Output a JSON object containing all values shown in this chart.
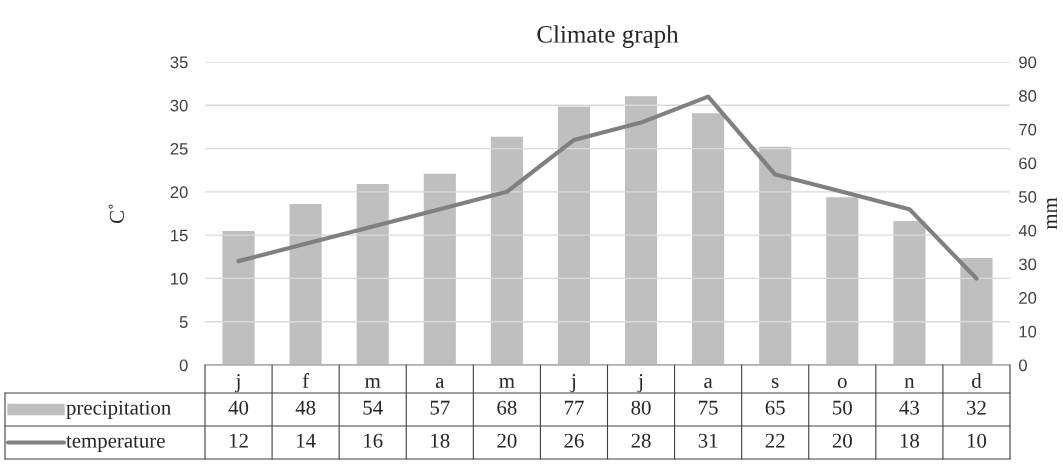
{
  "chart_data": {
    "type": "bar",
    "title": "Climate graph",
    "ylabel": "C˚",
    "y2label": "mm",
    "categories": [
      "j",
      "f",
      "m",
      "a",
      "m",
      "j",
      "j",
      "a",
      "s",
      "o",
      "n",
      "d"
    ],
    "series": [
      {
        "name": "precipitation",
        "axis": "y2",
        "color": "#bfbfbf",
        "values": [
          40,
          48,
          54,
          57,
          68,
          77,
          80,
          75,
          65,
          50,
          43,
          32
        ]
      },
      {
        "name": "temperature",
        "type": "line",
        "color": "#808080",
        "values": [
          12,
          14,
          16,
          18,
          20,
          26,
          28,
          31,
          22,
          20,
          18,
          10
        ]
      }
    ],
    "ylim": [
      0,
      35
    ],
    "yticks": [
      0,
      5,
      10,
      15,
      20,
      25,
      30,
      35
    ],
    "y2lim": [
      0,
      90
    ],
    "y2ticks": [
      0,
      10,
      20,
      30,
      40,
      50,
      60,
      70,
      80,
      90
    ],
    "grid": "y",
    "legend": "bottom",
    "data_labels": true,
    "marker": "none",
    "line_style": "solid"
  }
}
